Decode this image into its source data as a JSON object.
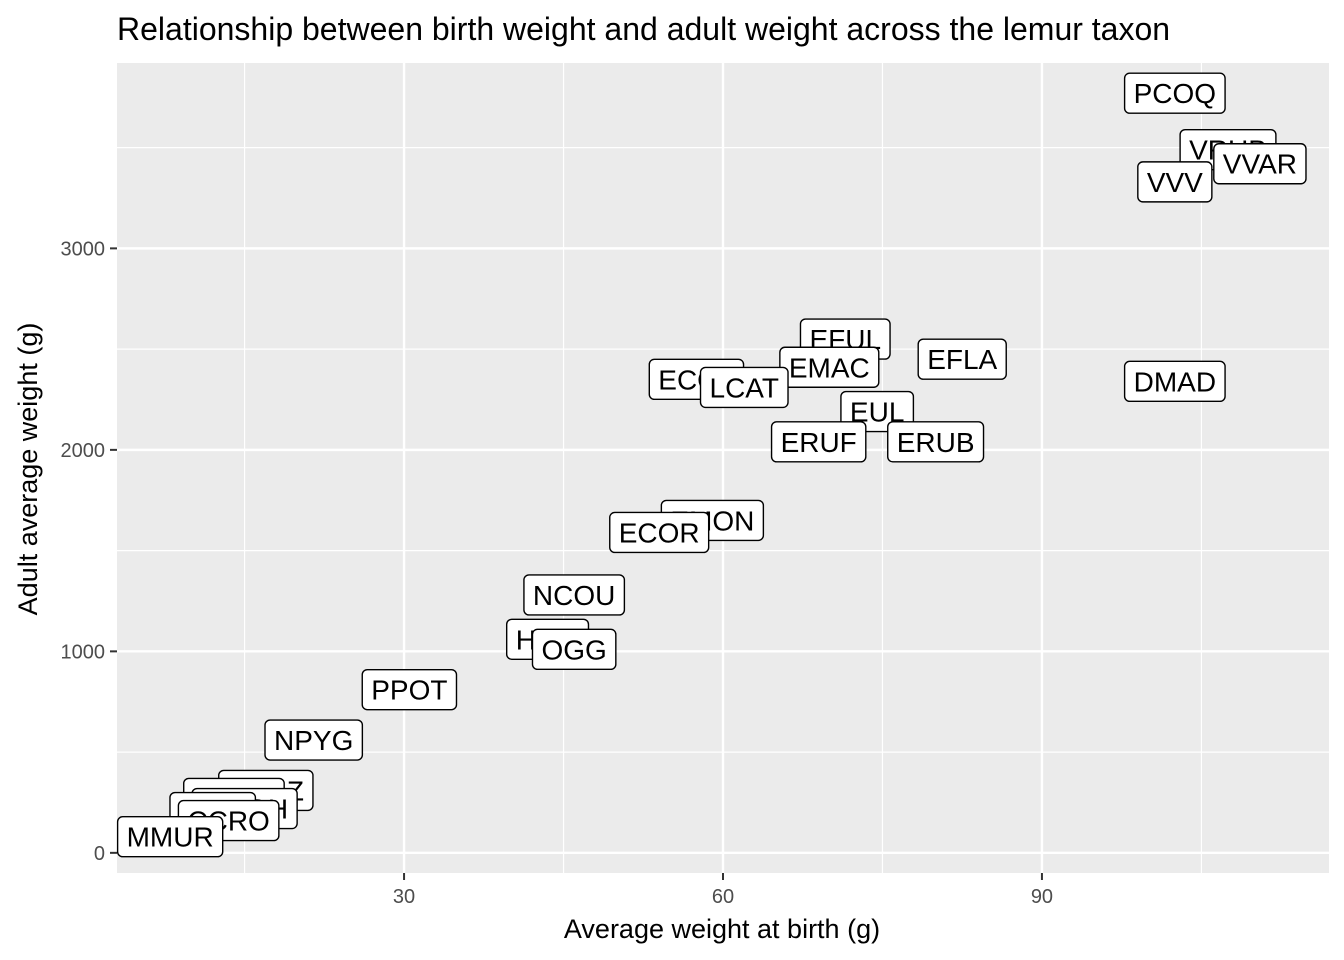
{
  "chart_data": {
    "type": "scatter",
    "title": "Relationship between birth weight and adult weight across the lemur taxon",
    "xlabel": "Average weight at birth (g)",
    "ylabel": "Adult average weight (g)",
    "xlim": [
      3,
      117
    ],
    "ylim": [
      -100,
      3920
    ],
    "x_ticks": [
      30,
      60,
      90
    ],
    "y_ticks": [
      0,
      1000,
      2000,
      3000
    ],
    "grid": true,
    "point_labels": "boxed text labels",
    "colors": {
      "panel": "#ebebeb",
      "grid": "#ffffff",
      "label_fill": "#ffffff",
      "label_border": "#000000"
    },
    "points": [
      {
        "label": "PCOQ",
        "x": 102.5,
        "y": 3770
      },
      {
        "label": "VRUB",
        "x": 107.5,
        "y": 3490
      },
      {
        "label": "VVAR",
        "x": 110.5,
        "y": 3420
      },
      {
        "label": "VVV",
        "x": 102.5,
        "y": 3330
      },
      {
        "label": "EFUL",
        "x": 71.5,
        "y": 2550
      },
      {
        "label": "EFLA",
        "x": 82.5,
        "y": 2450
      },
      {
        "label": "EMAC",
        "x": 70,
        "y": 2410
      },
      {
        "label": "ECOL",
        "x": 57.5,
        "y": 2350
      },
      {
        "label": "LCAT",
        "x": 62,
        "y": 2310
      },
      {
        "label": "DMAD",
        "x": 102.5,
        "y": 2340
      },
      {
        "label": "EUL",
        "x": 74.5,
        "y": 2190
      },
      {
        "label": "ERUF",
        "x": 69,
        "y": 2040
      },
      {
        "label": "ERUB",
        "x": 80,
        "y": 2040
      },
      {
        "label": "EMON",
        "x": 59,
        "y": 1650
      },
      {
        "label": "ECOR",
        "x": 54,
        "y": 1590
      },
      {
        "label": "NCOU",
        "x": 46,
        "y": 1280
      },
      {
        "label": "HGG",
        "x": 43.5,
        "y": 1060
      },
      {
        "label": "OGG",
        "x": 46,
        "y": 1010
      },
      {
        "label": "PPOT",
        "x": 30.5,
        "y": 810
      },
      {
        "label": "NPYG",
        "x": 21.5,
        "y": 560
      },
      {
        "label": "MZAZ",
        "x": 17,
        "y": 310
      },
      {
        "label": "CMED",
        "x": 14,
        "y": 270
      },
      {
        "label": "GMOH",
        "x": 15,
        "y": 220
      },
      {
        "label": "LTAR",
        "x": 12,
        "y": 200
      },
      {
        "label": "CCRO",
        "x": 13.5,
        "y": 160
      },
      {
        "label": "MMUR",
        "x": 8,
        "y": 80
      }
    ]
  }
}
